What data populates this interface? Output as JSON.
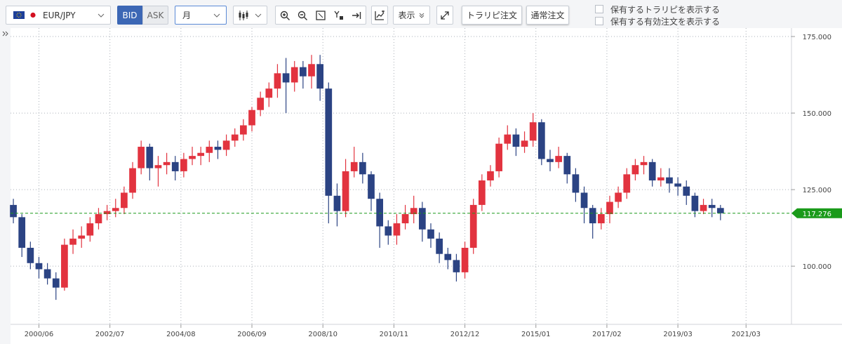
{
  "toolbar": {
    "symbol": "EUR/JPY",
    "bid": "BID",
    "ask": "ASK",
    "period": "月",
    "display": "表示",
    "trap_order": "トラリピ注文",
    "normal_order": "通常注文",
    "show_traps": "保有するトラリピを表示する",
    "show_orders": "保有する有効注文を表示する"
  },
  "chart_data": {
    "type": "candlestick",
    "x": [
      "1999/09",
      "1999/12",
      "2000/03",
      "2000/06",
      "2000/09",
      "2000/12",
      "2001/03",
      "2001/06",
      "2001/09",
      "2001/12",
      "2002/03",
      "2002/06",
      "2002/09",
      "2002/12",
      "2003/03",
      "2003/06",
      "2003/09",
      "2003/12",
      "2004/03",
      "2004/06",
      "2004/09",
      "2004/12",
      "2005/03",
      "2005/06",
      "2005/09",
      "2005/12",
      "2006/03",
      "2006/06",
      "2006/09",
      "2006/12",
      "2007/03",
      "2007/06",
      "2007/09",
      "2007/12",
      "2008/03",
      "2008/06",
      "2008/09",
      "2008/12",
      "2009/03",
      "2009/06",
      "2009/09",
      "2009/12",
      "2010/03",
      "2010/06",
      "2010/09",
      "2010/12",
      "2011/03",
      "2011/06",
      "2011/09",
      "2011/12",
      "2012/03",
      "2012/06",
      "2012/09",
      "2012/12",
      "2013/03",
      "2013/06",
      "2013/09",
      "2013/12",
      "2014/03",
      "2014/06",
      "2014/09",
      "2014/12",
      "2015/03",
      "2015/06",
      "2015/09",
      "2015/12",
      "2016/03",
      "2016/06",
      "2016/09",
      "2016/12",
      "2017/03",
      "2017/06",
      "2017/09",
      "2017/12",
      "2018/03",
      "2018/06",
      "2018/09",
      "2018/12",
      "2019/03",
      "2019/06",
      "2019/09",
      "2019/12",
      "2020/03",
      "2020/06"
    ],
    "open": [
      120,
      116,
      106,
      101,
      99,
      96,
      93,
      107,
      109,
      110,
      114,
      117,
      118,
      119,
      124,
      132,
      139,
      132,
      133,
      134,
      131,
      135,
      136,
      137,
      139,
      138,
      141,
      143,
      146,
      151,
      155,
      158,
      163,
      160,
      165,
      162,
      166,
      158,
      123,
      118,
      131,
      134,
      130,
      122,
      113,
      110,
      114,
      117,
      119,
      112,
      109,
      104,
      102,
      98,
      106,
      120,
      128,
      131,
      140,
      143,
      139,
      141,
      147,
      135,
      134,
      136,
      130,
      124,
      119,
      114,
      117,
      121,
      124,
      130,
      133,
      134,
      128,
      129,
      127,
      126,
      123,
      118,
      120,
      119
    ],
    "high": [
      122,
      117,
      108,
      103,
      101,
      98,
      109,
      112,
      113,
      116,
      119,
      120,
      122,
      126,
      134,
      141,
      140,
      136,
      137,
      136,
      137,
      139,
      139,
      141,
      141,
      143,
      145,
      148,
      152,
      157,
      160,
      166,
      168,
      167,
      167,
      169,
      169,
      160,
      127,
      135,
      139,
      137,
      131,
      124,
      115,
      117,
      120,
      123,
      121,
      114,
      111,
      106,
      104,
      108,
      122,
      130,
      133,
      142,
      146,
      145,
      144,
      150,
      148,
      138,
      139,
      137,
      132,
      126,
      120,
      119,
      123,
      126,
      132,
      135,
      136,
      135,
      132,
      132,
      129,
      128,
      124,
      122,
      122,
      120
    ],
    "low": [
      114,
      103,
      99,
      96,
      94,
      89,
      92,
      104,
      106,
      108,
      112,
      115,
      116,
      117,
      122,
      130,
      128,
      126,
      130,
      128,
      129,
      133,
      133,
      134,
      135,
      136,
      139,
      141,
      144,
      149,
      152,
      155,
      150,
      157,
      158,
      158,
      154,
      114,
      113,
      116,
      129,
      127,
      118,
      106,
      107,
      107,
      112,
      114,
      108,
      106,
      101,
      99,
      95,
      96,
      104,
      118,
      126,
      129,
      138,
      136,
      137,
      139,
      133,
      131,
      132,
      127,
      121,
      114,
      109,
      112,
      114,
      119,
      122,
      128,
      130,
      126,
      126,
      124,
      123,
      120,
      116,
      117,
      116,
      115
    ],
    "close": [
      116,
      106,
      101,
      99,
      96,
      93,
      107,
      109,
      110,
      114,
      117,
      118,
      119,
      124,
      132,
      139,
      132,
      133,
      134,
      131,
      135,
      136,
      137,
      139,
      138,
      141,
      143,
      146,
      151,
      155,
      158,
      163,
      160,
      165,
      162,
      166,
      158,
      123,
      118,
      131,
      134,
      130,
      122,
      113,
      110,
      114,
      117,
      119,
      112,
      109,
      104,
      102,
      98,
      106,
      120,
      128,
      131,
      140,
      143,
      139,
      141,
      147,
      135,
      134,
      136,
      130,
      124,
      119,
      114,
      117,
      121,
      124,
      130,
      133,
      134,
      128,
      129,
      127,
      126,
      123,
      118,
      120,
      119,
      117.276
    ],
    "up_color": "#e2333f",
    "down_color": "#2b4383",
    "ylim": [
      81,
      177.3
    ],
    "yticks": [
      {
        "value": 100,
        "label": "100.000"
      },
      {
        "value": 125,
        "label": "125.000"
      },
      {
        "value": 150,
        "label": "150.000"
      },
      {
        "value": 175,
        "label": "175.000"
      }
    ],
    "xlim": [
      "1999/08",
      "2022/07"
    ],
    "xticks": [
      "2000/06",
      "2002/07",
      "2004/08",
      "2006/09",
      "2008/10",
      "2010/11",
      "2012/12",
      "2015/01",
      "2017/02",
      "2019/03",
      "2021/03"
    ],
    "last_price": 117.276,
    "last_price_color": "#1a9a1a",
    "grid": true
  }
}
